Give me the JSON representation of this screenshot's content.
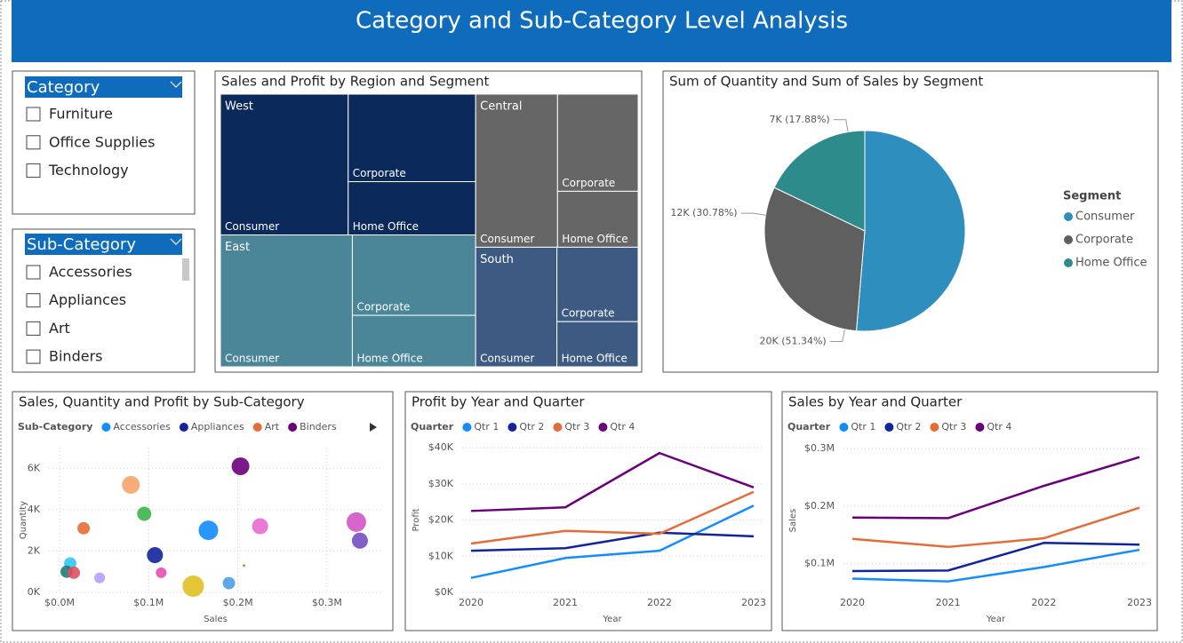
{
  "header": {
    "title": "Category and Sub-Category Level Analysis"
  },
  "slicers": [
    {
      "title": "Category",
      "items": [
        "Furniture",
        "Office Supplies",
        "Technology"
      ]
    },
    {
      "title": "Sub-Category",
      "items": [
        "Accessories",
        "Appliances",
        "Art",
        "Binders"
      ]
    }
  ],
  "chart_data": [
    {
      "type": "treemap",
      "title": "Sales and Profit by Region and Segment",
      "groups": [
        {
          "name": "West",
          "color": "#0b2a5b",
          "categories": [
            "Consumer",
            "Corporate",
            "Home Office"
          ],
          "values": [
            363000,
            225000,
            137000
          ]
        },
        {
          "name": "East",
          "color": "#4a8598",
          "categories": [
            "Consumer",
            "Corporate",
            "Home Office"
          ],
          "values": [
            351000,
            200000,
            128000
          ]
        },
        {
          "name": "Central",
          "color": "#666666",
          "categories": [
            "Consumer",
            "Corporate",
            "Home Office"
          ],
          "values": [
            253000,
            158000,
            91000
          ]
        },
        {
          "name": "South",
          "color": "#3d5a82",
          "categories": [
            "Consumer",
            "Corporate",
            "Home Office"
          ],
          "values": [
            196000,
            122000,
            74000
          ]
        }
      ]
    },
    {
      "type": "pie",
      "title": "Sum of Quantity and Sum of Sales by Segment",
      "legend_title": "Segment",
      "categories": [
        "Consumer",
        "Corporate",
        "Home Office"
      ],
      "values": [
        51.34,
        30.78,
        17.88
      ],
      "value_labels": [
        "20K (51.34%)",
        "12K (30.78%)",
        "7K (17.88%)"
      ],
      "colors": [
        "#2e8fbf",
        "#5f5f5f",
        "#2e8b8b"
      ]
    },
    {
      "type": "scatter",
      "title": "Sales, Quantity and Profit by Sub-Category",
      "legend_title": "Sub-Category",
      "x_label": "Sales",
      "y_label": "Quantity",
      "xlim": [
        0,
        350000
      ],
      "ylim": [
        0,
        7000
      ],
      "xticks": [
        {
          "value": 0,
          "label": "$0.0M"
        },
        {
          "value": 100000,
          "label": "$0.1M"
        },
        {
          "value": 200000,
          "label": "$0.2M"
        },
        {
          "value": 300000,
          "label": "$0.3M"
        }
      ],
      "yticks": [
        {
          "value": 0,
          "label": "0K"
        },
        {
          "value": 2000,
          "label": "2K"
        },
        {
          "value": 4000,
          "label": "4K"
        },
        {
          "value": 6000,
          "label": "6K"
        }
      ],
      "grid": true,
      "series": [
        {
          "name": "Accessories",
          "color": "#118dff",
          "x": [
            167000
          ],
          "values": [
            3000
          ],
          "sizes": [
            40000
          ]
        },
        {
          "name": "Appliances",
          "color": "#12239e",
          "x": [
            107000
          ],
          "values": [
            1800
          ],
          "sizes": [
            27000
          ]
        },
        {
          "name": "Art",
          "color": "#e66c37",
          "x": [
            27000
          ],
          "values": [
            3100
          ],
          "sizes": [
            16000
          ]
        },
        {
          "name": "Binders",
          "color": "#6b007b",
          "x": [
            203000
          ],
          "values": [
            6100
          ],
          "sizes": [
            33000
          ]
        }
      ],
      "points": [
        {
          "x": 80000,
          "y": 5200,
          "size": 33000,
          "color": "#f5a46a"
        },
        {
          "x": 95000,
          "y": 3800,
          "size": 21000,
          "color": "#3cb44b"
        },
        {
          "x": 225000,
          "y": 3200,
          "size": 27000,
          "color": "#e86ad0"
        },
        {
          "x": 333000,
          "y": 3400,
          "size": 40000,
          "color": "#d255c4"
        },
        {
          "x": 337000,
          "y": 2500,
          "size": 27000,
          "color": "#744ec2"
        },
        {
          "x": 12000,
          "y": 1400,
          "size": 16000,
          "color": "#2ec7f5"
        },
        {
          "x": 8000,
          "y": 1000,
          "size": 16000,
          "color": "#217a7a"
        },
        {
          "x": 16000,
          "y": 950,
          "size": 16000,
          "color": "#e04f5f"
        },
        {
          "x": 45000,
          "y": 700,
          "size": 12000,
          "color": "#b3a0ff"
        },
        {
          "x": 114000,
          "y": 950,
          "size": 12000,
          "color": "#e84fb5"
        },
        {
          "x": 150000,
          "y": 300,
          "size": 48000,
          "color": "#e0c020"
        },
        {
          "x": 190000,
          "y": 450,
          "size": 16000,
          "color": "#4c9fe8"
        },
        {
          "x": 207000,
          "y": 1300,
          "size": 750,
          "color": "#e66c37"
        }
      ]
    },
    {
      "type": "line",
      "title": "Profit by Year and Quarter",
      "legend_title": "Quarter",
      "x_label": "Year",
      "y_label": "Profit",
      "categories": [
        "2020",
        "2021",
        "2022",
        "2023"
      ],
      "ylim": [
        0,
        40000
      ],
      "yticks": [
        {
          "value": 0,
          "label": "$0K"
        },
        {
          "value": 10000,
          "label": "$10K"
        },
        {
          "value": 20000,
          "label": "$20K"
        },
        {
          "value": 30000,
          "label": "$30K"
        },
        {
          "value": 40000,
          "label": "$40K"
        }
      ],
      "grid": true,
      "series": [
        {
          "name": "Qtr 1",
          "color": "#118dff",
          "values": [
            4000,
            9500,
            11500,
            24000
          ]
        },
        {
          "name": "Qtr 2",
          "color": "#12239e",
          "values": [
            11500,
            12200,
            16500,
            15500
          ]
        },
        {
          "name": "Qtr 3",
          "color": "#e66c37",
          "values": [
            13500,
            17000,
            16200,
            27800
          ]
        },
        {
          "name": "Qtr 4",
          "color": "#6b007b",
          "values": [
            22500,
            23500,
            38500,
            29000
          ]
        }
      ]
    },
    {
      "type": "line",
      "title": "Sales by Year and Quarter",
      "legend_title": "Quarter",
      "x_label": "Year",
      "y_label": "Sales",
      "categories": [
        "2020",
        "2021",
        "2022",
        "2023"
      ],
      "ylim": [
        50000,
        300000
      ],
      "yticks": [
        {
          "value": 100000,
          "label": "$0.1M"
        },
        {
          "value": 200000,
          "label": "$0.2M"
        },
        {
          "value": 300000,
          "label": "$0.3M"
        }
      ],
      "grid": true,
      "series": [
        {
          "name": "Qtr 1",
          "color": "#118dff",
          "values": [
            74000,
            69000,
            94000,
            124000
          ]
        },
        {
          "name": "Qtr 2",
          "color": "#12239e",
          "values": [
            87000,
            88000,
            136000,
            133000
          ]
        },
        {
          "name": "Qtr 3",
          "color": "#e66c37",
          "values": [
            143000,
            129000,
            144000,
            197000
          ]
        },
        {
          "name": "Qtr 4",
          "color": "#6b007b",
          "values": [
            180000,
            179000,
            235000,
            285000
          ]
        }
      ]
    }
  ]
}
